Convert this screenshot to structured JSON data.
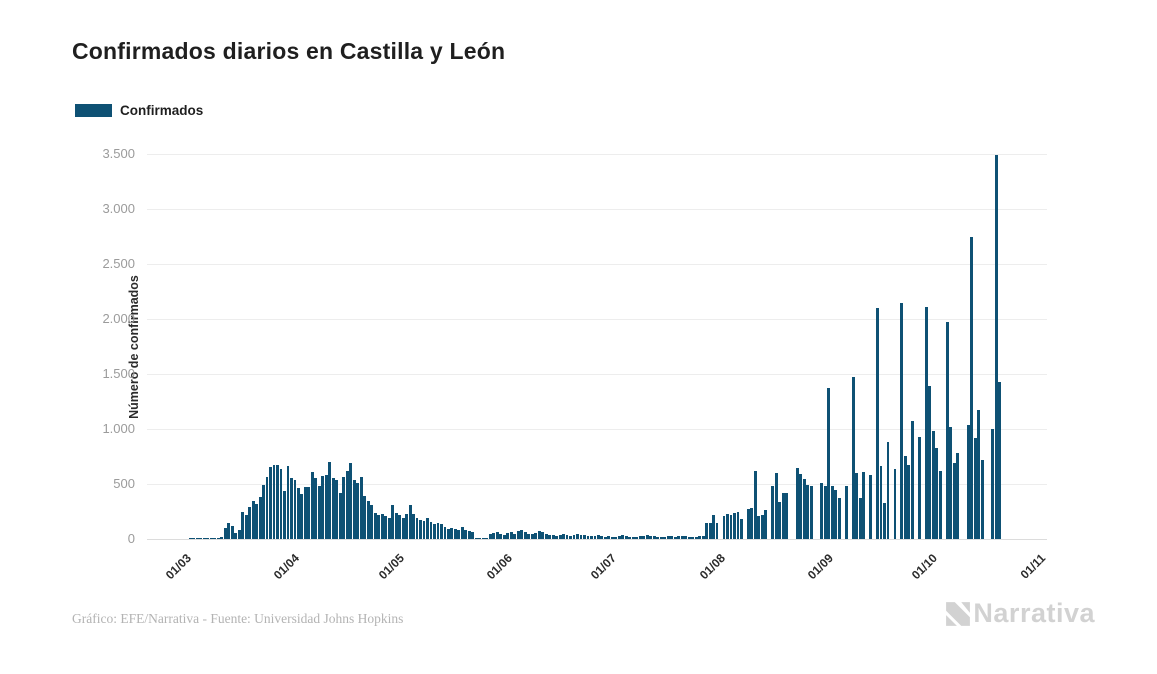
{
  "page": {
    "title": "Confirmados diarios en Castilla y León"
  },
  "legend": {
    "label": "Confirmados",
    "color": "#0e5174"
  },
  "chart_data": {
    "type": "bar",
    "title": "Confirmados diarios en Castilla y León",
    "xlabel": "",
    "ylabel": "Número de confirmados",
    "ylim": [
      0,
      3500
    ],
    "grid": true,
    "legend_position": "top-left",
    "bar_color": "#0e5174",
    "y_tick_values": [
      0,
      500,
      1000,
      1500,
      2000,
      2500,
      3000,
      3500
    ],
    "y_tick_labels": [
      "0",
      "500",
      "1.000",
      "1.500",
      "2.000",
      "2.500",
      "3.000",
      "3.500"
    ],
    "x_tick_labels": [
      "01/03",
      "01/04",
      "01/05",
      "01/06",
      "01/07",
      "01/08",
      "01/09",
      "01/10",
      "01/11"
    ],
    "x_tick_day_offsets": [
      0,
      31,
      61,
      92,
      122,
      153,
      184,
      214,
      245
    ],
    "x_unit": "day",
    "x_start": "01/03",
    "domain_leading_days": 10,
    "domain_total_days": 258,
    "series": [
      {
        "name": "Confirmados",
        "values": [
          0,
          0,
          1,
          2,
          3,
          5,
          4,
          8,
          10,
          6,
          12,
          15,
          103,
          146,
          122,
          52,
          82,
          244,
          219,
          295,
          341,
          317,
          378,
          494,
          560,
          655,
          677,
          670,
          633,
          432,
          661,
          555,
          539,
          463,
          411,
          469,
          472,
          610,
          555,
          478,
          569,
          585,
          700,
          555,
          539,
          417,
          560,
          620,
          690,
          540,
          505,
          560,
          390,
          345,
          310,
          240,
          215,
          225,
          205,
          195,
          310,
          240,
          215,
          190,
          225,
          305,
          230,
          195,
          170,
          160,
          195,
          158,
          140,
          150,
          135,
          110,
          95,
          100,
          90,
          85,
          105,
          80,
          70,
          60,
          8,
          5,
          4,
          10,
          45,
          55,
          60,
          50,
          40,
          55,
          65,
          45,
          75,
          85,
          60,
          50,
          45,
          55,
          70,
          60,
          45,
          40,
          35,
          30,
          40,
          45,
          35,
          30,
          35,
          45,
          40,
          35,
          30,
          25,
          30,
          35,
          25,
          20,
          25,
          20,
          15,
          30,
          35,
          25,
          20,
          15,
          20,
          25,
          30,
          35,
          30,
          25,
          20,
          15,
          20,
          25,
          30,
          20,
          25,
          30,
          25,
          20,
          15,
          20,
          25,
          30,
          145,
          150,
          215,
          150,
          0,
          210,
          230,
          215,
          240,
          250,
          180,
          0,
          275,
          280,
          620,
          205,
          215,
          260,
          0,
          478,
          600,
          340,
          420,
          415,
          0,
          0,
          650,
          594,
          550,
          487,
          485,
          0,
          0,
          510,
          485,
          1370,
          478,
          448,
          375,
          0,
          480,
          0,
          1470,
          600,
          375,
          610,
          0,
          585,
          0,
          2100,
          665,
          330,
          885,
          0,
          640,
          0,
          2150,
          755,
          675,
          1070,
          0,
          930,
          0,
          2110,
          1390,
          985,
          830,
          620,
          0,
          1975,
          1020,
          695,
          785,
          0,
          0,
          1035,
          2750,
          920,
          1170,
          720,
          0,
          0,
          1000,
          3490,
          1430
        ]
      }
    ]
  },
  "footer": {
    "credit": "Gráfico: EFE/Narrativa - Fuente: Universidad Johns Hopkins",
    "brand": "Narrativa"
  }
}
